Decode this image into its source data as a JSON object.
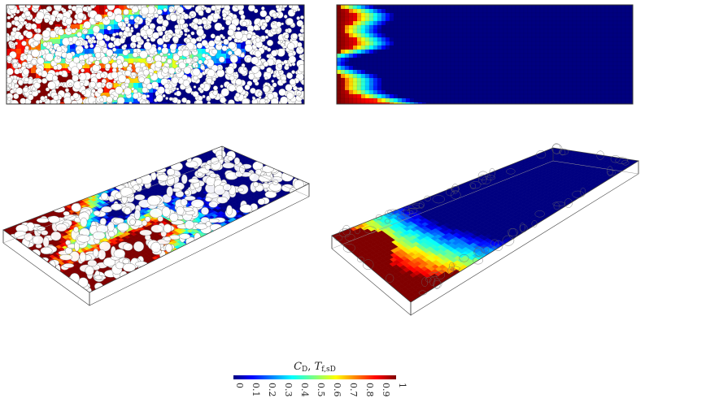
{
  "figure": {
    "panels": [
      {
        "id": "top-left",
        "view": "2D",
        "geometry": "pore-scale grain packing"
      },
      {
        "id": "top-right",
        "view": "2D",
        "geometry": "homogenized mesh"
      },
      {
        "id": "bottom-left",
        "view": "3D",
        "geometry": "pore-scale grain packing"
      },
      {
        "id": "bottom-right",
        "view": "3D",
        "geometry": "homogenized mesh"
      }
    ],
    "colorbar": {
      "title": "C",
      "title_sub": "D",
      "title_sep": ", ",
      "title2": "T",
      "title2_sub": "f,sD",
      "colormap": "jet",
      "range": [
        0,
        1
      ],
      "ticks": [
        "0",
        "0.1",
        "0.2",
        "0.3",
        "0.4",
        "0.5",
        "0.6",
        "0.7",
        "0.8",
        "0.9",
        "1"
      ],
      "colors": {
        "low": "#00007f",
        "mid": "#7fff7f",
        "high": "#7f0000"
      }
    }
  }
}
